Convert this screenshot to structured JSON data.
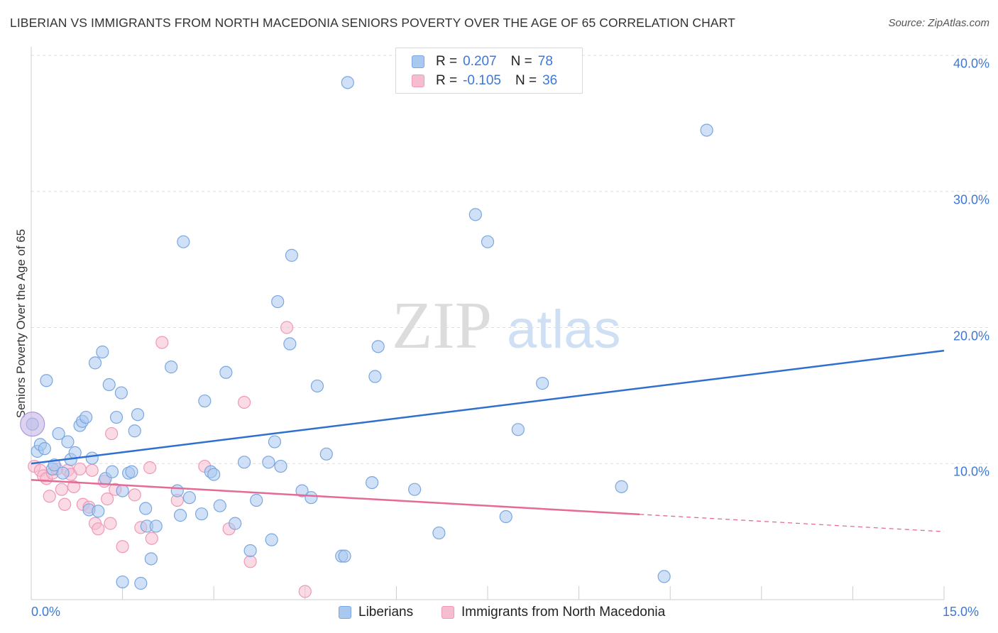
{
  "title": "LIBERIAN VS IMMIGRANTS FROM NORTH MACEDONIA SENIORS POVERTY OVER THE AGE OF 65 CORRELATION CHART",
  "source": "Source: ZipAtlas.com",
  "watermark": {
    "zip": "ZIP",
    "atlas": "atlas"
  },
  "colors": {
    "blue_fill": "#a9c8f0",
    "blue_stroke": "#7aa7e0",
    "blue_line": "#2f6fd0",
    "pink_fill": "#f6bcd0",
    "pink_stroke": "#ef99b6",
    "pink_line": "#e56a96",
    "tick_text": "#3d78d6",
    "grid": "#dddddd"
  },
  "legend": [
    {
      "r_label": "R =",
      "r_value": "0.207",
      "n_label": "N =",
      "n_value": "78"
    },
    {
      "r_label": "R =",
      "r_value": "-0.105",
      "n_label": "N =",
      "n_value": "36"
    }
  ],
  "chart_data": {
    "type": "scatter",
    "title": "LIBERIAN VS IMMIGRANTS FROM NORTH MACEDONIA SENIORS POVERTY OVER THE AGE OF 65 CORRELATION CHART",
    "xlabel": "",
    "ylabel": "Seniors Poverty Over the Age of 65",
    "xlim": [
      0,
      15
    ],
    "ylim": [
      0,
      40
    ],
    "x_tick_labels": [
      "0.0%",
      "15.0%"
    ],
    "y_ticks": [
      10,
      20,
      30,
      40
    ],
    "y_tick_labels": [
      "10.0%",
      "20.0%",
      "30.0%",
      "40.0%"
    ],
    "grid": true,
    "legend_position": "top-center",
    "series": [
      {
        "name": "Liberians",
        "r": 0.207,
        "n": 78,
        "color": "#a9c8f0",
        "trend": {
          "x": [
            0,
            15
          ],
          "y": [
            10.0,
            18.3
          ],
          "dashed_from": null
        },
        "points": [
          [
            0.02,
            12.9
          ],
          [
            0.1,
            10.9
          ],
          [
            0.15,
            11.4
          ],
          [
            0.22,
            11.1
          ],
          [
            0.25,
            16.1
          ],
          [
            0.35,
            9.6
          ],
          [
            0.38,
            9.9
          ],
          [
            0.45,
            12.2
          ],
          [
            0.52,
            9.3
          ],
          [
            0.6,
            11.6
          ],
          [
            0.65,
            10.3
          ],
          [
            0.72,
            10.8
          ],
          [
            0.8,
            12.8
          ],
          [
            0.84,
            13.1
          ],
          [
            0.9,
            13.4
          ],
          [
            0.95,
            6.6
          ],
          [
            1.0,
            10.4
          ],
          [
            1.05,
            17.4
          ],
          [
            1.1,
            6.5
          ],
          [
            1.17,
            18.2
          ],
          [
            1.22,
            8.9
          ],
          [
            1.28,
            15.8
          ],
          [
            1.33,
            9.4
          ],
          [
            1.4,
            13.4
          ],
          [
            1.48,
            15.2
          ],
          [
            1.5,
            8.0
          ],
          [
            1.6,
            9.3
          ],
          [
            1.65,
            9.4
          ],
          [
            1.7,
            12.4
          ],
          [
            1.75,
            13.6
          ],
          [
            1.88,
            6.7
          ],
          [
            1.9,
            5.4
          ],
          [
            1.97,
            3.0
          ],
          [
            2.05,
            5.4
          ],
          [
            2.3,
            17.1
          ],
          [
            2.4,
            8.0
          ],
          [
            2.45,
            6.2
          ],
          [
            2.5,
            26.3
          ],
          [
            2.6,
            7.5
          ],
          [
            2.8,
            6.3
          ],
          [
            2.85,
            14.6
          ],
          [
            2.95,
            9.4
          ],
          [
            3.0,
            9.2
          ],
          [
            3.1,
            6.9
          ],
          [
            3.2,
            16.7
          ],
          [
            3.35,
            5.6
          ],
          [
            3.5,
            10.1
          ],
          [
            3.6,
            3.6
          ],
          [
            3.7,
            7.3
          ],
          [
            3.9,
            10.1
          ],
          [
            3.95,
            4.4
          ],
          [
            4.0,
            11.6
          ],
          [
            4.05,
            21.9
          ],
          [
            4.1,
            9.8
          ],
          [
            4.25,
            18.8
          ],
          [
            4.28,
            25.3
          ],
          [
            4.45,
            8.0
          ],
          [
            4.6,
            7.5
          ],
          [
            4.7,
            15.7
          ],
          [
            4.85,
            10.7
          ],
          [
            5.1,
            3.2
          ],
          [
            5.15,
            3.2
          ],
          [
            5.2,
            38.0
          ],
          [
            5.6,
            8.6
          ],
          [
            5.65,
            16.4
          ],
          [
            5.7,
            18.6
          ],
          [
            6.3,
            8.1
          ],
          [
            6.7,
            4.9
          ],
          [
            7.3,
            28.3
          ],
          [
            7.5,
            26.3
          ],
          [
            7.8,
            6.1
          ],
          [
            8.0,
            12.5
          ],
          [
            8.4,
            15.9
          ],
          [
            9.7,
            8.3
          ],
          [
            10.4,
            1.7
          ],
          [
            11.1,
            34.5
          ],
          [
            1.5,
            1.3
          ],
          [
            1.8,
            1.2
          ]
        ]
      },
      {
        "name": "Immigrants from North Macedonia",
        "r": -0.105,
        "n": 36,
        "color": "#f6bcd0",
        "trend": {
          "x": [
            0,
            15
          ],
          "y": [
            8.8,
            5.0
          ],
          "dashed_from": 10
        },
        "points": [
          [
            0.05,
            9.8
          ],
          [
            0.15,
            9.5
          ],
          [
            0.2,
            9.1
          ],
          [
            0.25,
            8.9
          ],
          [
            0.3,
            7.6
          ],
          [
            0.35,
            9.3
          ],
          [
            0.42,
            9.6
          ],
          [
            0.5,
            8.1
          ],
          [
            0.55,
            7.0
          ],
          [
            0.6,
            9.5
          ],
          [
            0.65,
            9.2
          ],
          [
            0.7,
            8.3
          ],
          [
            0.8,
            9.6
          ],
          [
            0.85,
            7.0
          ],
          [
            0.95,
            6.8
          ],
          [
            1.0,
            9.5
          ],
          [
            1.05,
            5.6
          ],
          [
            1.1,
            5.2
          ],
          [
            1.2,
            8.7
          ],
          [
            1.25,
            7.4
          ],
          [
            1.3,
            5.6
          ],
          [
            1.32,
            12.2
          ],
          [
            1.38,
            8.1
          ],
          [
            1.5,
            3.9
          ],
          [
            1.7,
            7.7
          ],
          [
            1.8,
            5.3
          ],
          [
            1.95,
            9.7
          ],
          [
            1.98,
            4.5
          ],
          [
            2.15,
            18.9
          ],
          [
            2.4,
            7.3
          ],
          [
            2.85,
            9.8
          ],
          [
            3.25,
            5.2
          ],
          [
            3.5,
            14.5
          ],
          [
            3.6,
            2.8
          ],
          [
            4.2,
            20.0
          ],
          [
            4.5,
            0.6
          ]
        ]
      }
    ]
  }
}
